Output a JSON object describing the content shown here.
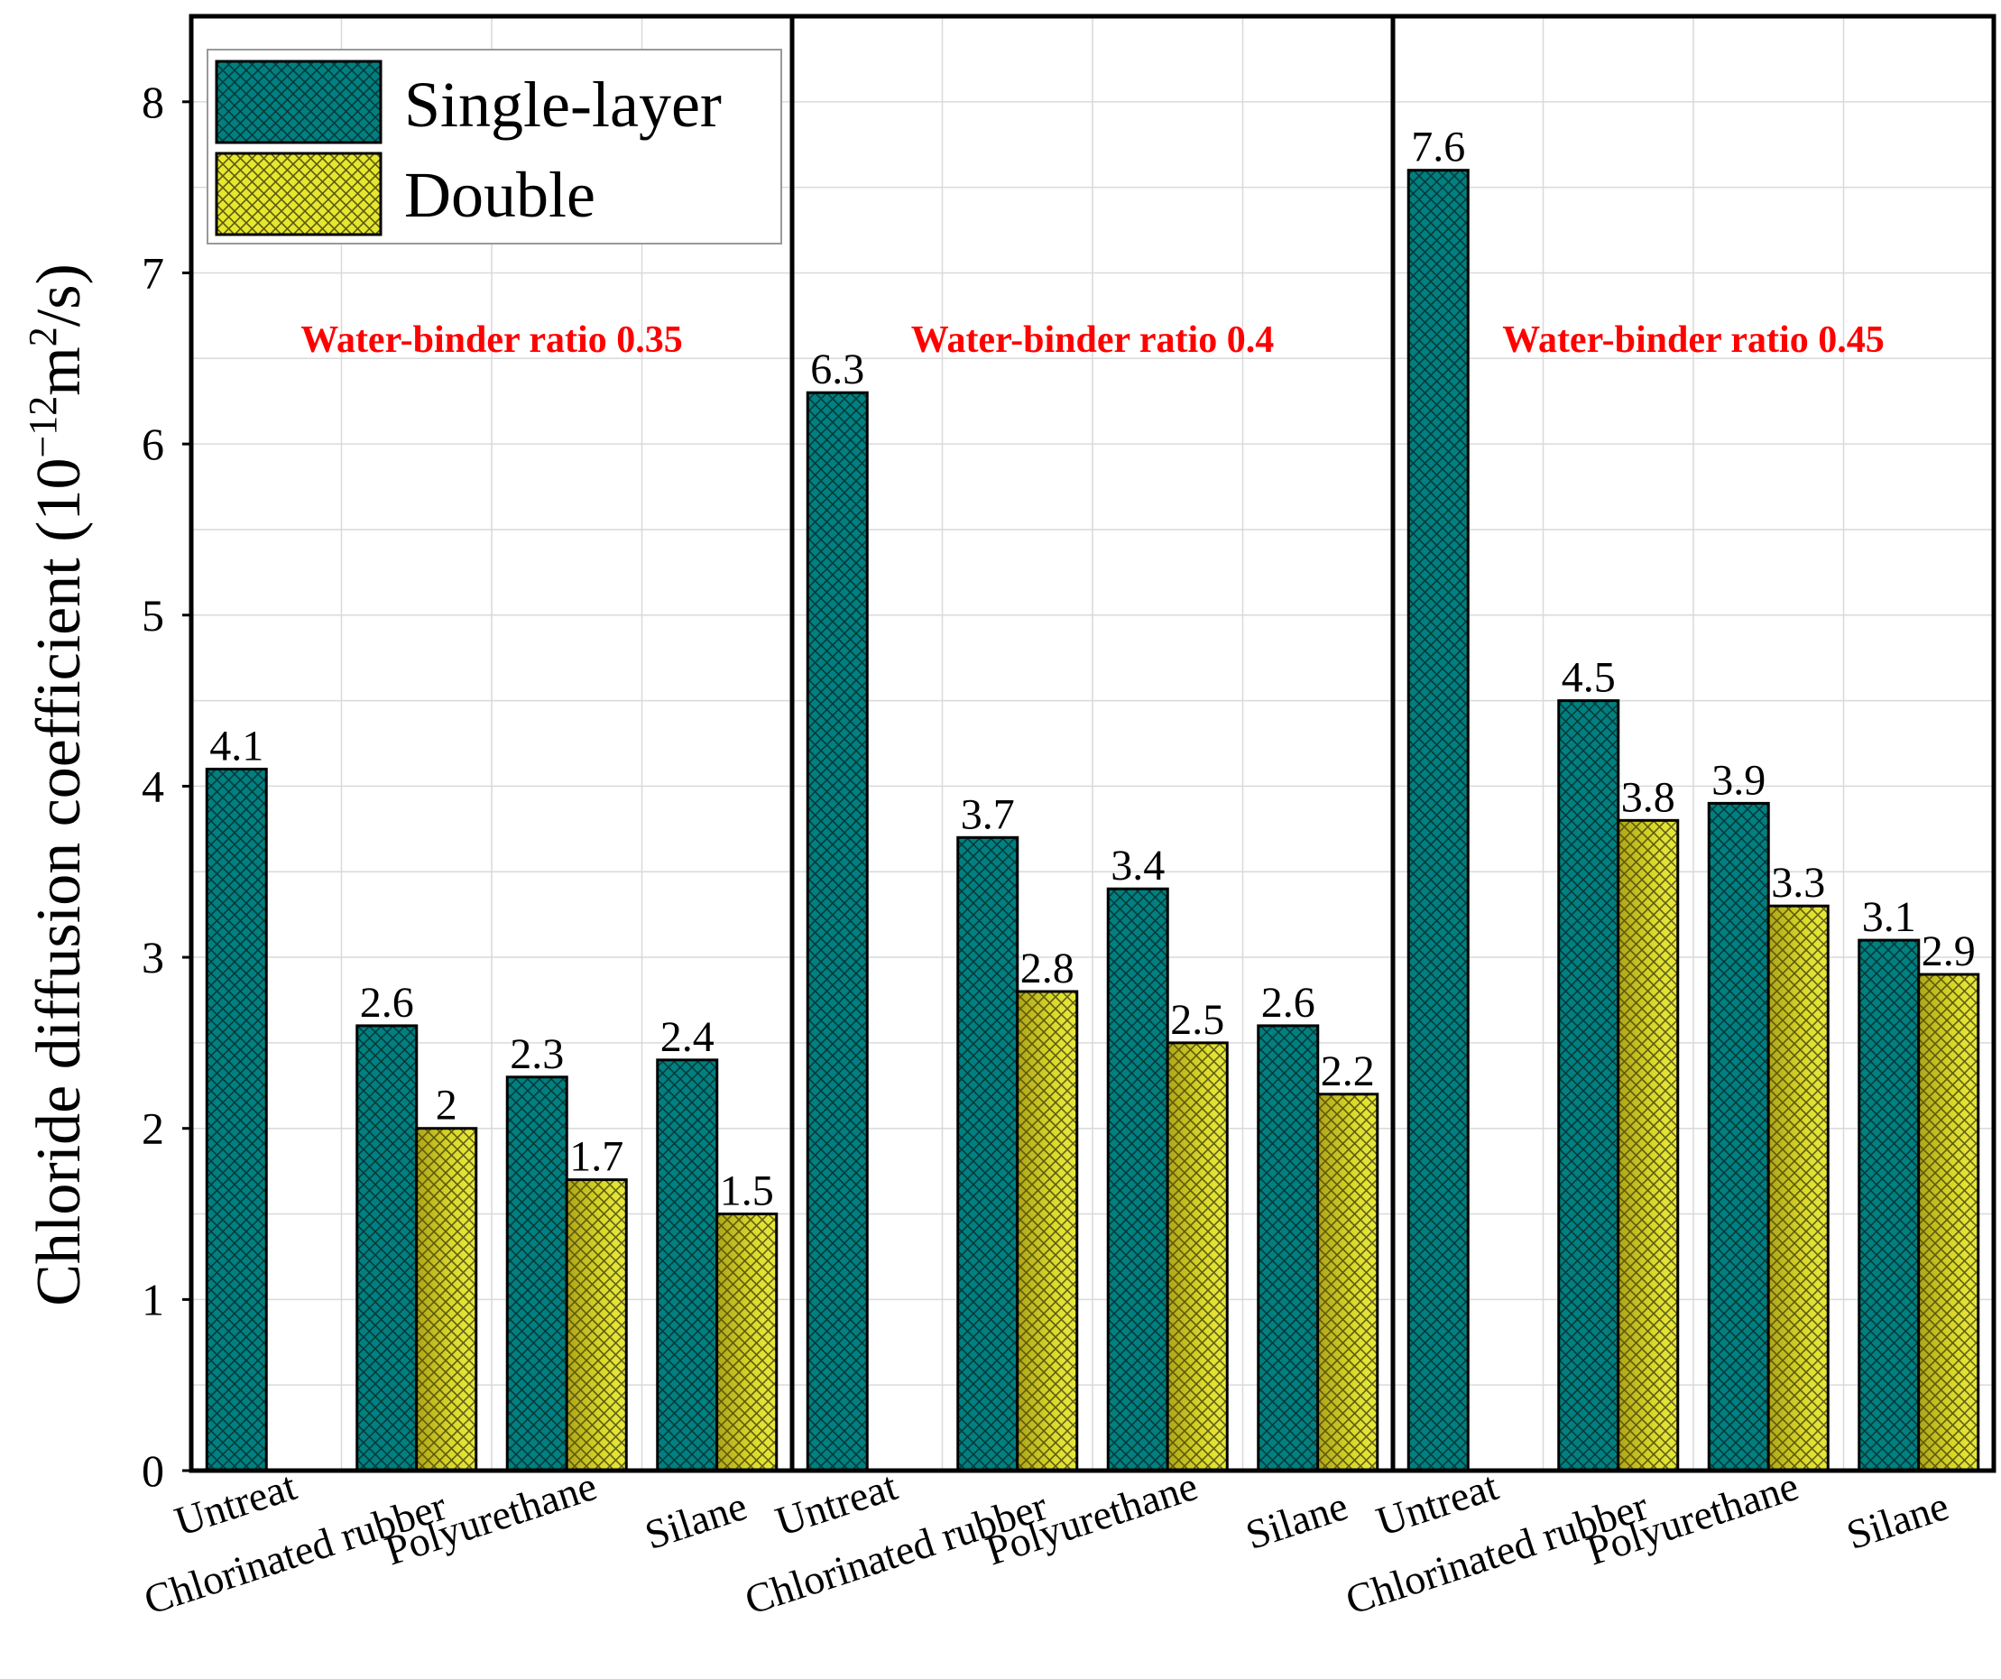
{
  "chart_data": {
    "type": "bar",
    "ylabel": "Chloride diffusion coefficient (10−12m2/s)",
    "ylabel_parts": {
      "main": "Chloride diffusion coefficient (10",
      "exp": "−12",
      "unit": "m",
      "unit_exp": "2",
      "close": "/s)"
    },
    "ylim": [
      0,
      8.5
    ],
    "yticks": [
      0,
      1,
      2,
      3,
      4,
      5,
      6,
      7,
      8
    ],
    "grid": true,
    "legend_position": "top-left",
    "categories": [
      "Untreat",
      "Chlorinated rubber",
      "Polyurethane",
      "Silane"
    ],
    "series": [
      {
        "name": "Single-layer",
        "color": "#008080",
        "pattern": "crosshatch"
      },
      {
        "name": "Double",
        "color": "#e6e62e",
        "pattern": "crosshatch"
      }
    ],
    "groups": [
      {
        "title": "Water-binder ratio 0.35",
        "values": {
          "Single-layer": [
            4.1,
            2.6,
            2.3,
            2.4
          ],
          "Double": [
            null,
            2,
            1.7,
            1.5
          ]
        },
        "labels": {
          "Single-layer": [
            "4.1",
            "2.6",
            "2.3",
            "2.4"
          ],
          "Double": [
            null,
            "2",
            "1.7",
            "1.5"
          ]
        }
      },
      {
        "title": "Water-binder ratio 0.4",
        "values": {
          "Single-layer": [
            6.3,
            3.7,
            3.4,
            2.6
          ],
          "Double": [
            null,
            2.8,
            2.5,
            2.2
          ]
        },
        "labels": {
          "Single-layer": [
            "6.3",
            "3.7",
            "3.4",
            "2.6"
          ],
          "Double": [
            null,
            "2.8",
            "2.5",
            "2.2"
          ]
        }
      },
      {
        "title": "Water-binder ratio 0.45",
        "values": {
          "Single-layer": [
            7.6,
            4.5,
            3.9,
            3.1
          ],
          "Double": [
            null,
            3.8,
            3.3,
            2.9
          ]
        },
        "labels": {
          "Single-layer": [
            "7.6",
            "4.5",
            "3.9",
            "3.1"
          ],
          "Double": [
            null,
            "3.8",
            "3.3",
            "2.9"
          ]
        }
      }
    ]
  }
}
